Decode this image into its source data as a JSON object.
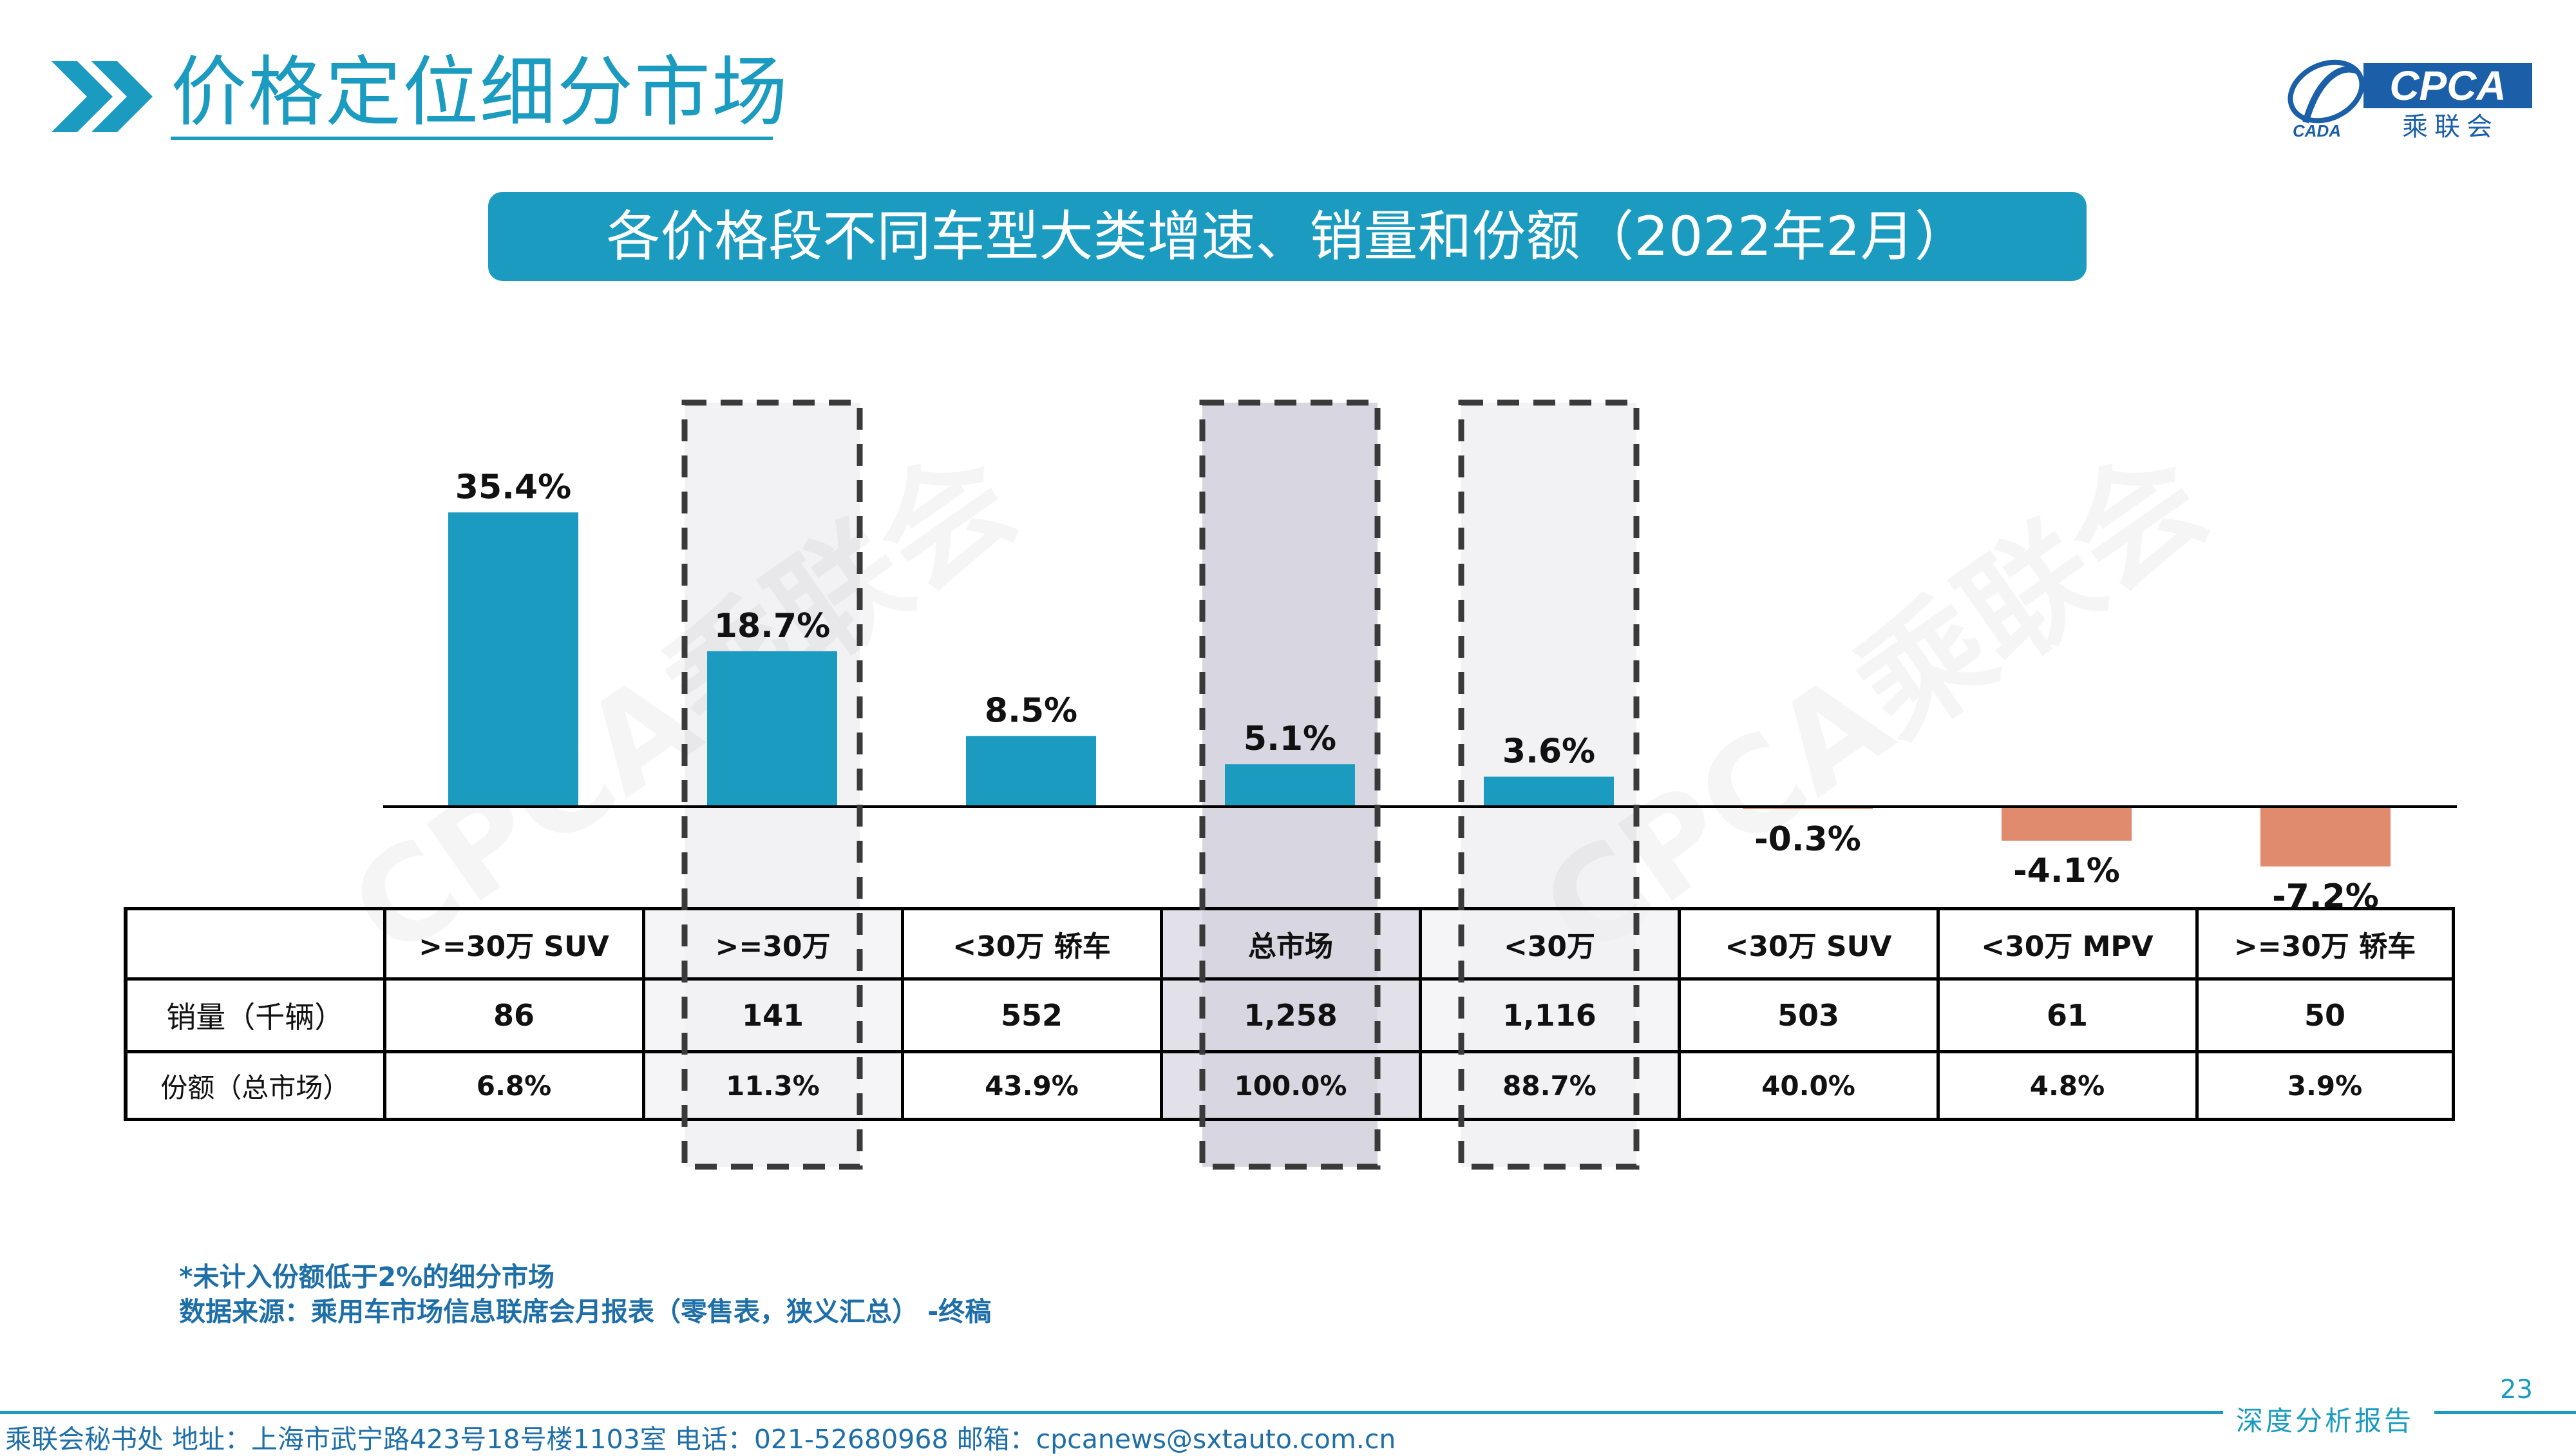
{
  "header": {
    "title": "价格定位细分市场",
    "logo": {
      "brand": "CPCA",
      "sub_cn": "乘联会",
      "mark": "CADA"
    }
  },
  "banner": {
    "text": "各价格段不同车型大类增速、销量和份额（2022年2月）"
  },
  "watermark": "CPCA乘联会",
  "colors": {
    "accent": "#1a9bbf",
    "positive_bar": "#1a9bbf",
    "negative_bar": "#e08a6e",
    "highlight_dark": "#d8d6e0",
    "highlight_light": "#f2f2f4"
  },
  "chart_data": {
    "type": "bar",
    "categories": [
      ">=30万 SUV",
      ">=30万",
      "<30万 轿车",
      "总市场",
      "<30万",
      "<30万 SUV",
      "<30万 MPV",
      ">=30万 轿车"
    ],
    "values": [
      35.4,
      18.7,
      8.5,
      5.1,
      3.6,
      -0.3,
      -4.1,
      -7.2
    ],
    "value_labels": [
      "35.4%",
      "18.7%",
      "8.5%",
      "5.1%",
      "3.6%",
      "-0.3%",
      "-4.1%",
      "-7.2%"
    ],
    "highlighted": [
      {
        "category": ">=30万",
        "style": "dashed-light"
      },
      {
        "category": "总市场",
        "style": "dashed-gray"
      },
      {
        "category": "<30万",
        "style": "dashed-light"
      }
    ],
    "legend": "none",
    "grid": false,
    "ylim": [
      -8,
      36
    ]
  },
  "table": {
    "header": [
      "",
      ">=30万 SUV",
      ">=30万",
      "<30万 轿车",
      "总市场",
      "<30万",
      "<30万 SUV",
      "<30万 MPV",
      ">=30万 轿车"
    ],
    "rows": [
      {
        "label": "销量（千辆）",
        "cells": [
          "86",
          "141",
          "552",
          "1,258",
          "1,116",
          "503",
          "61",
          "50"
        ]
      },
      {
        "label": "份额（总市场）",
        "cells": [
          "6.8%",
          "11.3%",
          "43.9%",
          "100.0%",
          "88.7%",
          "40.0%",
          "4.8%",
          "3.9%"
        ]
      }
    ]
  },
  "footnotes": {
    "note1": "*未计入份额低于2%的细分市场",
    "note2": "数据来源：乘用车市场信息联席会月报表（零售表，狭义汇总） -终稿"
  },
  "footer": {
    "page_number": "23",
    "contact": "乘联会秘书处  地址：上海市武宁路423号18号楼1103室  电话：021-52680968  邮箱：cpcanews@sxtauto.com.cn",
    "report_label": "深度分析报告"
  }
}
